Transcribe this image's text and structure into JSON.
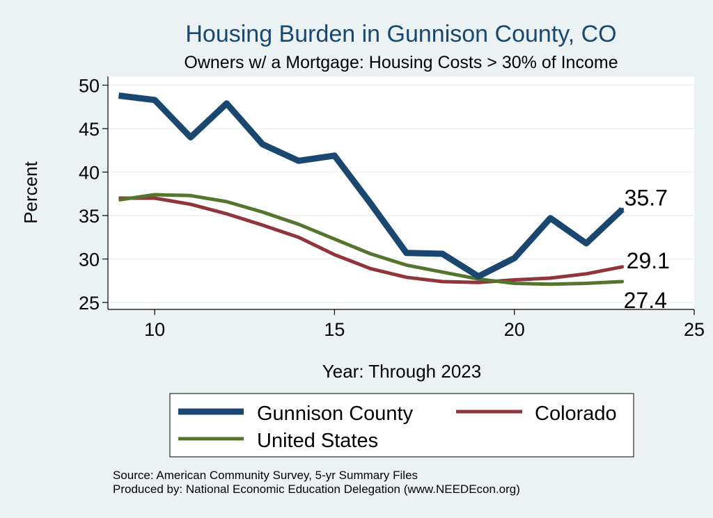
{
  "chart_data": {
    "type": "line",
    "title": "Housing Burden in Gunnison County, CO",
    "subtitle": "Owners w/ a Mortgage: Housing Costs > 30% of Income",
    "xlabel": "Year: Through 2023",
    "ylabel": "Percent",
    "xlim": [
      8.7,
      25
    ],
    "ylim": [
      24.2,
      51
    ],
    "xticks": [
      10,
      15,
      20,
      25
    ],
    "yticks": [
      25,
      30,
      35,
      40,
      45,
      50
    ],
    "grid": true,
    "legend_position": "bottom",
    "x": [
      9,
      10,
      11,
      12,
      13,
      14,
      15,
      16,
      17,
      18,
      19,
      20,
      21,
      22,
      23
    ],
    "series": [
      {
        "name": "Gunnison County",
        "color": "#1a476f",
        "values": [
          48.8,
          48.3,
          44.0,
          47.9,
          43.2,
          41.3,
          41.9,
          36.4,
          30.7,
          30.6,
          28.0,
          30.1,
          34.7,
          31.8,
          35.7
        ],
        "end_label": "35.7"
      },
      {
        "name": "Colorado",
        "color": "#90353b",
        "values": [
          37.0,
          37.0,
          36.3,
          35.2,
          33.9,
          32.5,
          30.5,
          28.9,
          27.9,
          27.4,
          27.3,
          27.6,
          27.8,
          28.3,
          29.1
        ],
        "end_label": "29.1"
      },
      {
        "name": "United States",
        "color": "#55752f",
        "values": [
          36.8,
          37.4,
          37.3,
          36.6,
          35.4,
          34.0,
          32.3,
          30.6,
          29.3,
          28.5,
          27.7,
          27.2,
          27.1,
          27.2,
          27.4
        ],
        "end_label": "27.4"
      }
    ]
  },
  "notes": {
    "source": "Source: American Community Survey, 5-yr Summary Files",
    "produced_by": "Produced by: National Economic Education Delegation (www.NEEDEcon.org)"
  }
}
